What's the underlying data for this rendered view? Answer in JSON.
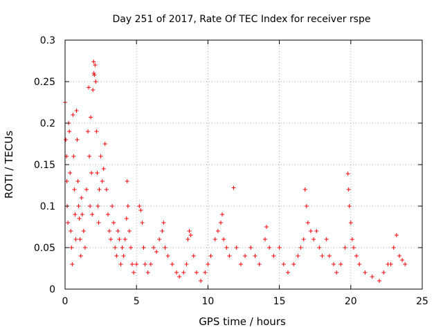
{
  "chart_data": {
    "type": "scatter",
    "title": "Day 251 of 2017, Rate Of TEC Index for receiver rspe",
    "xlabel": "GPS time / hours",
    "ylabel": "ROTI / TECUs",
    "xlim": [
      0,
      25
    ],
    "ylim": [
      0,
      0.3
    ],
    "xticks": [
      "0",
      "5",
      "10",
      "15",
      "20",
      "25"
    ],
    "xtick_values": [
      0,
      5,
      10,
      15,
      20,
      25
    ],
    "yticks": [
      "0",
      "0.05",
      "0.1",
      "0.15",
      "0.2",
      "0.25",
      "0.3"
    ],
    "ytick_values": [
      0,
      0.05,
      0.1,
      0.15,
      0.2,
      0.25,
      0.3
    ],
    "grid": true,
    "marker": "+",
    "color": "#ff0000",
    "series": [
      {
        "name": "ROTI",
        "points": [
          [
            0.0,
            0.225
          ],
          [
            0.05,
            0.18
          ],
          [
            0.1,
            0.16
          ],
          [
            0.12,
            0.13
          ],
          [
            0.15,
            0.1
          ],
          [
            0.2,
            0.08
          ],
          [
            0.25,
            0.2
          ],
          [
            0.3,
            0.19
          ],
          [
            0.35,
            0.14
          ],
          [
            0.4,
            0.07
          ],
          [
            0.45,
            0.05
          ],
          [
            0.5,
            0.03
          ],
          [
            0.55,
            0.21
          ],
          [
            0.6,
            0.16
          ],
          [
            0.65,
            0.12
          ],
          [
            0.7,
            0.09
          ],
          [
            0.75,
            0.06
          ],
          [
            0.8,
            0.215
          ],
          [
            0.85,
            0.18
          ],
          [
            0.9,
            0.13
          ],
          [
            0.95,
            0.1
          ],
          [
            1.0,
            0.085
          ],
          [
            1.05,
            0.06
          ],
          [
            1.1,
            0.04
          ],
          [
            1.15,
            0.11
          ],
          [
            1.2,
            0.09
          ],
          [
            1.3,
            0.07
          ],
          [
            1.4,
            0.05
          ],
          [
            1.5,
            0.12
          ],
          [
            1.6,
            0.19
          ],
          [
            1.65,
            0.243
          ],
          [
            1.7,
            0.16
          ],
          [
            1.75,
            0.1
          ],
          [
            1.8,
            0.207
          ],
          [
            1.85,
            0.14
          ],
          [
            1.9,
            0.09
          ],
          [
            1.95,
            0.24
          ],
          [
            2.0,
            0.274
          ],
          [
            2.02,
            0.26
          ],
          [
            2.05,
            0.258
          ],
          [
            2.1,
            0.27
          ],
          [
            2.15,
            0.25
          ],
          [
            2.2,
            0.19
          ],
          [
            2.25,
            0.14
          ],
          [
            2.3,
            0.1
          ],
          [
            2.35,
            0.08
          ],
          [
            2.4,
            0.12
          ],
          [
            2.5,
            0.16
          ],
          [
            2.6,
            0.13
          ],
          [
            2.7,
            0.145
          ],
          [
            2.8,
            0.175
          ],
          [
            2.9,
            0.12
          ],
          [
            3.0,
            0.09
          ],
          [
            3.1,
            0.07
          ],
          [
            3.2,
            0.06
          ],
          [
            3.3,
            0.1
          ],
          [
            3.4,
            0.08
          ],
          [
            3.5,
            0.05
          ],
          [
            3.6,
            0.04
          ],
          [
            3.7,
            0.07
          ],
          [
            3.8,
            0.06
          ],
          [
            3.9,
            0.03
          ],
          [
            4.0,
            0.05
          ],
          [
            4.1,
            0.04
          ],
          [
            4.2,
            0.06
          ],
          [
            4.3,
            0.085
          ],
          [
            4.35,
            0.13
          ],
          [
            4.4,
            0.1
          ],
          [
            4.5,
            0.07
          ],
          [
            4.6,
            0.05
          ],
          [
            4.7,
            0.03
          ],
          [
            4.8,
            0.02
          ],
          [
            5.0,
            0.03
          ],
          [
            5.2,
            0.1
          ],
          [
            5.3,
            0.095
          ],
          [
            5.4,
            0.08
          ],
          [
            5.5,
            0.05
          ],
          [
            5.6,
            0.03
          ],
          [
            5.8,
            0.02
          ],
          [
            6.0,
            0.03
          ],
          [
            6.2,
            0.05
          ],
          [
            6.4,
            0.045
          ],
          [
            6.6,
            0.06
          ],
          [
            6.8,
            0.07
          ],
          [
            6.9,
            0.08
          ],
          [
            7.0,
            0.05
          ],
          [
            7.2,
            0.04
          ],
          [
            7.5,
            0.03
          ],
          [
            7.8,
            0.02
          ],
          [
            8.0,
            0.015
          ],
          [
            8.3,
            0.02
          ],
          [
            8.5,
            0.03
          ],
          [
            8.6,
            0.06
          ],
          [
            8.7,
            0.07
          ],
          [
            8.8,
            0.065
          ],
          [
            9.0,
            0.04
          ],
          [
            9.2,
            0.02
          ],
          [
            9.5,
            0.01
          ],
          [
            9.8,
            0.02
          ],
          [
            10.0,
            0.03
          ],
          [
            10.2,
            0.04
          ],
          [
            10.5,
            0.06
          ],
          [
            10.7,
            0.07
          ],
          [
            10.9,
            0.08
          ],
          [
            11.0,
            0.09
          ],
          [
            11.1,
            0.06
          ],
          [
            11.3,
            0.05
          ],
          [
            11.5,
            0.04
          ],
          [
            11.8,
            0.122
          ],
          [
            12.0,
            0.05
          ],
          [
            12.3,
            0.03
          ],
          [
            12.6,
            0.04
          ],
          [
            13.0,
            0.05
          ],
          [
            13.3,
            0.04
          ],
          [
            13.6,
            0.03
          ],
          [
            14.0,
            0.06
          ],
          [
            14.1,
            0.075
          ],
          [
            14.3,
            0.05
          ],
          [
            14.6,
            0.04
          ],
          [
            15.0,
            0.05
          ],
          [
            15.3,
            0.03
          ],
          [
            15.6,
            0.02
          ],
          [
            16.0,
            0.03
          ],
          [
            16.3,
            0.04
          ],
          [
            16.5,
            0.05
          ],
          [
            16.7,
            0.06
          ],
          [
            16.8,
            0.12
          ],
          [
            16.9,
            0.1
          ],
          [
            17.0,
            0.08
          ],
          [
            17.2,
            0.07
          ],
          [
            17.4,
            0.06
          ],
          [
            17.6,
            0.07
          ],
          [
            17.8,
            0.05
          ],
          [
            18.0,
            0.04
          ],
          [
            18.3,
            0.06
          ],
          [
            18.5,
            0.04
          ],
          [
            18.8,
            0.03
          ],
          [
            19.0,
            0.02
          ],
          [
            19.3,
            0.03
          ],
          [
            19.6,
            0.05
          ],
          [
            19.8,
            0.139
          ],
          [
            19.85,
            0.12
          ],
          [
            19.9,
            0.1
          ],
          [
            20.0,
            0.08
          ],
          [
            20.1,
            0.06
          ],
          [
            20.2,
            0.05
          ],
          [
            20.4,
            0.04
          ],
          [
            20.6,
            0.03
          ],
          [
            21.0,
            0.02
          ],
          [
            21.5,
            0.015
          ],
          [
            22.0,
            0.01
          ],
          [
            22.3,
            0.02
          ],
          [
            22.6,
            0.03
          ],
          [
            22.8,
            0.03
          ],
          [
            23.0,
            0.05
          ],
          [
            23.2,
            0.065
          ],
          [
            23.4,
            0.04
          ],
          [
            23.6,
            0.035
          ],
          [
            23.8,
            0.03
          ]
        ]
      }
    ]
  }
}
